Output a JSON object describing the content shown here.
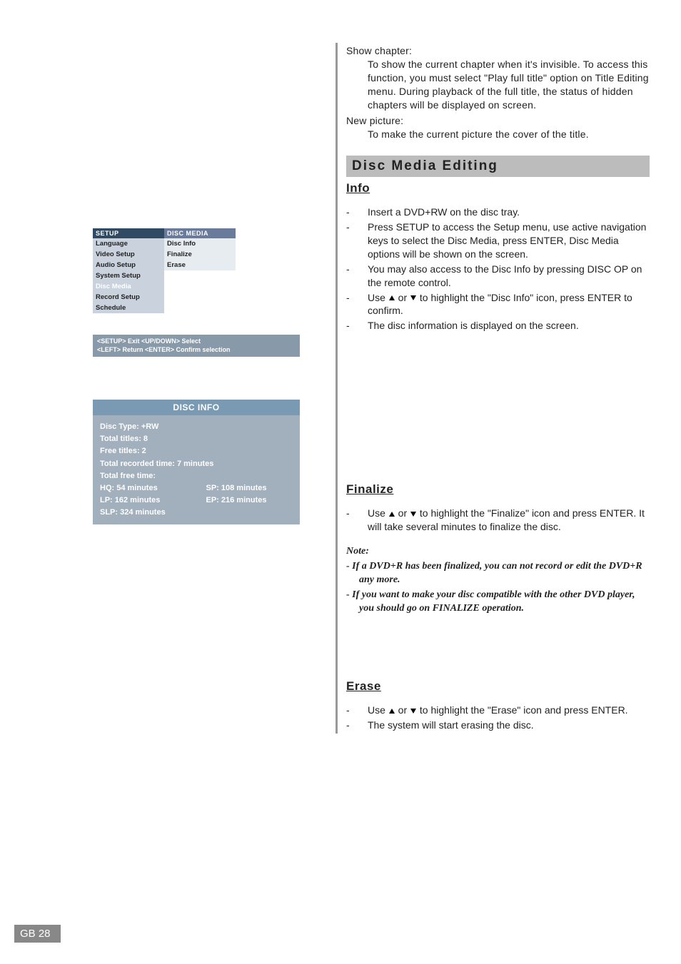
{
  "setup_menu": {
    "left_header": "SETUP",
    "right_header": "DISC MEDIA",
    "left_items": [
      "Language",
      "Video Setup",
      "Audio Setup",
      "System Setup",
      "Disc Media",
      "Record Setup",
      "Schedule"
    ],
    "right_items": [
      "Disc Info",
      "Finalize",
      "Erase"
    ],
    "highlighted_left": "Disc Media",
    "hints_line1": "<SETUP> Exit   <UP/DOWN> Select",
    "hints_line2": "<LEFT> Return  <ENTER> Confirm selection"
  },
  "disc_info": {
    "header": "DISC INFO",
    "rows": [
      "Disc Type:   +RW",
      "Total titles:    8",
      "Free titles:    2",
      "Total recorded time:       7 minutes",
      "Total free time:"
    ],
    "mode_rows": [
      {
        "a": "HQ:  54 minutes",
        "b": "SP:  108 minutes"
      },
      {
        "a": "LP:  162 minutes",
        "b": "EP:  216 minutes"
      },
      {
        "a": "SLP:  324 minutes",
        "b": ""
      }
    ]
  },
  "right": {
    "show_chapter_label": "Show chapter:",
    "show_chapter_body": "To show the current chapter when it's invisible. To access this function, you must select \"Play full title\" option on Title Editing menu. During playback of the full title, the status of hidden chapters will be displayed on screen.",
    "new_picture_label": "New picture:",
    "new_picture_body": "To make the current picture the cover of the title.",
    "section_heading": "Disc Media Editing",
    "info_heading": "Info",
    "info_items": [
      "Insert a DVD+RW on the disc tray.",
      "Press SETUP to access the Setup menu, use active navigation keys to select the Disc Media, press ENTER, Disc Media options will be shown on the screen.",
      "You may also access to the Disc Info by pressing DISC OP on the remote control.",
      "__ARROWS__to highlight the \"Disc Info\" icon, press ENTER to confirm.",
      "The disc information is displayed on the screen."
    ],
    "finalize_heading": "Finalize",
    "finalize_item": "__ARROWS__to highlight the \"Finalize\" icon and press ENTER. It will take several minutes to finalize the disc.",
    "note_label": "Note:",
    "note_items": [
      "If a DVD+R has been finalized, you can not record or edit the DVD+R any more.",
      "If you want to make your disc compatible with the other DVD player, you should go on FINALIZE operation."
    ],
    "erase_heading": "Erase",
    "erase_items": [
      "__ARROWS__to highlight the \"Erase\" icon and press ENTER.",
      "The system will start erasing the disc."
    ]
  },
  "page_number": "GB 28"
}
